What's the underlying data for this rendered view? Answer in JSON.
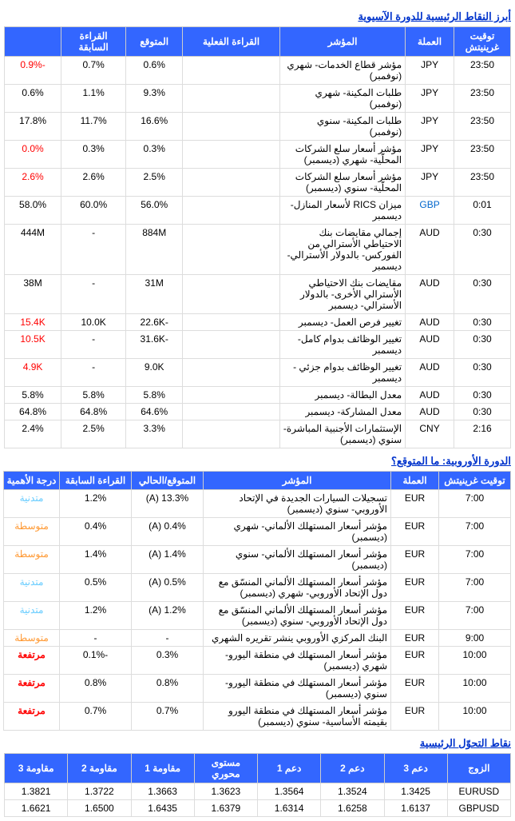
{
  "sections": {
    "asia_title": "أبرز النقاط الرئيسية للدورة الآسيوية",
    "europe_title": "الدورة الأوروبية: ما المتوقع؟",
    "pivot_title": "نقاط التحوّل الرئيسية"
  },
  "asia": {
    "headers": [
      "توقيت غرينيتش",
      "العملة",
      "المؤشر",
      "القراءة الفعلية",
      "المتوقع",
      "القراءة السابقة",
      ""
    ],
    "rows": [
      {
        "time": "23:50",
        "cur": "JPY",
        "ind": "مؤشر قطاع الخدمات- شهري (نوفمبر)",
        "act": "",
        "exp": "0.6%",
        "prev": "0.7%",
        "last": "-0.9%",
        "lc": "neg"
      },
      {
        "time": "23:50",
        "cur": "JPY",
        "ind": "طلبات المكينة- شهري (نوفمبر)",
        "act": "",
        "exp": "9.3%",
        "prev": "1.1%",
        "last": "0.6%"
      },
      {
        "time": "23:50",
        "cur": "JPY",
        "ind": "طلبات المكينة- سنوي (نوفمبر)",
        "act": "",
        "exp": "16.6%",
        "prev": "11.7%",
        "last": "17.8%"
      },
      {
        "time": "23:50",
        "cur": "JPY",
        "ind": "مؤشر أسعار سلع الشركات المحلّية- شهري (ديسمبر)",
        "act": "",
        "exp": "0.3%",
        "prev": "0.3%",
        "last": "0.0%",
        "lc": "neg"
      },
      {
        "time": "23:50",
        "cur": "JPY",
        "ind": "مؤشر أسعار سلع الشركات المحلّية- سنوي (ديسمبر)",
        "act": "",
        "exp": "2.5%",
        "prev": "2.6%",
        "last": "2.6%",
        "lc": "neg"
      },
      {
        "time": "0:01",
        "cur": "GBP",
        "cc": "blue",
        "ind": "ميزان RICS لأسعار المنازل- ديسمبر",
        "act": "",
        "exp": "56.0%",
        "prev": "60.0%",
        "last": "58.0%"
      },
      {
        "time": "0:30",
        "cur": "AUD",
        "ind": "إجمالي مقايضات بنك الاحتياطي الأسترالي من الفوركس- بالدولار الأسترالي- ديسمبر",
        "act": "",
        "exp": "884M",
        "prev": "-",
        "last": "444M"
      },
      {
        "time": "0:30",
        "cur": "AUD",
        "ind": "مقايضات بنك الاحتياطي الأسترالي الأخرى- بالدولار الأسترالي- ديسمبر",
        "act": "",
        "exp": "31M",
        "prev": "-",
        "last": "38M"
      },
      {
        "time": "0:30",
        "cur": "AUD",
        "ind": "تغيير فرص العمل- ديسمبر",
        "act": "",
        "exp": "-22.6K",
        "prev": "10.0K",
        "last": "15.4K",
        "lc": "neg"
      },
      {
        "time": "0:30",
        "cur": "AUD",
        "ind": "تغيير الوظائف بدوام كامل- ديسمبر",
        "act": "",
        "exp": "-31.6K",
        "prev": "-",
        "last": "10.5K",
        "lc": "neg"
      },
      {
        "time": "0:30",
        "cur": "AUD",
        "ind": "تغيير الوظائف بدوام جزئي - ديسمبر",
        "act": "",
        "exp": "9.0K",
        "prev": "-",
        "last": "4.9K",
        "lc": "neg"
      },
      {
        "time": "0:30",
        "cur": "AUD",
        "ind": "معدل البطالة- ديسمبر",
        "act": "",
        "exp": "5.8%",
        "prev": "5.8%",
        "last": "5.8%"
      },
      {
        "time": "0:30",
        "cur": "AUD",
        "ind": "معدل المشاركة- ديسمبر",
        "act": "",
        "exp": "64.6%",
        "prev": "64.8%",
        "last": "64.8%"
      },
      {
        "time": "2:16",
        "cur": "CNY",
        "ind": "الإستثمارات الأجنبية المباشرة- سنوي (ديسمبر)",
        "act": "",
        "exp": "3.3%",
        "prev": "2.5%",
        "last": "2.4%"
      }
    ]
  },
  "europe": {
    "headers": [
      "توقيت غرينيتش",
      "العملة",
      "المؤشر",
      "المتوقع/الحالي",
      "القراءة السابقة",
      "درجة الأهمية"
    ],
    "rows": [
      {
        "time": "7:00",
        "cur": "EUR",
        "ind": "تسجيلات السيارات الجديدة في الإتحاد الأوروبي- سنوي (ديسمبر)",
        "exp": "13.3% (A)",
        "prev": "1.2%",
        "imp": "متدنية",
        "ic": "low"
      },
      {
        "time": "7:00",
        "cur": "EUR",
        "ind": "مؤشر أسعار المستهلك الألماني- شهري (ديسمبر)",
        "exp": "0.4% (A)",
        "prev": "0.4%",
        "imp": "متوسطة",
        "ic": "med"
      },
      {
        "time": "7:00",
        "cur": "EUR",
        "ind": "مؤشر أسعار المستهلك الألماني- سنوي (ديسمبر)",
        "exp": "1.4% (A)",
        "prev": "1.4%",
        "imp": "متوسطة",
        "ic": "med"
      },
      {
        "time": "7:00",
        "cur": "EUR",
        "ind": "مؤشر أسعار المستهلك الألماني المنسّق مع دول الإتحاد الأوروبي- شهري (ديسمبر)",
        "exp": "0.5% (A)",
        "prev": "0.5%",
        "imp": "متدنية",
        "ic": "low"
      },
      {
        "time": "7:00",
        "cur": "EUR",
        "ind": "مؤشر أسعار المستهلك الألماني المنسّق مع دول الإتحاد الأوروبي- سنوي (ديسمبر)",
        "exp": "1.2% (A)",
        "prev": "1.2%",
        "imp": "متدنية",
        "ic": "low"
      },
      {
        "time": "9:00",
        "cur": "EUR",
        "ind": "البنك المركزي الأوروبي ينشر تقريره الشهري",
        "exp": "-",
        "prev": "-",
        "imp": "متوسطة",
        "ic": "med"
      },
      {
        "time": "10:00",
        "cur": "EUR",
        "ind": "مؤشر أسعار المستهلك في منطقة اليورو- شهري (ديسمبر)",
        "exp": "0.3%",
        "prev": "-0.1%",
        "imp": "مرتفعة",
        "ic": "high"
      },
      {
        "time": "10:00",
        "cur": "EUR",
        "ind": "مؤشر أسعار المستهلك في منطقة اليورو- سنوي (ديسمبر)",
        "exp": "0.8%",
        "prev": "0.8%",
        "imp": "مرتفعة",
        "ic": "high"
      },
      {
        "time": "10:00",
        "cur": "EUR",
        "ind": "مؤشر أسعار المستهلك في منطقة اليورو بقيمته الأساسية- سنوي (ديسمبر)",
        "exp": "0.7%",
        "prev": "0.7%",
        "imp": "مرتفعة",
        "ic": "high"
      }
    ]
  },
  "pivot": {
    "headers": [
      "الزوج",
      "دعم 3",
      "دعم 2",
      "دعم 1",
      "مستوى محوري",
      "مقاومة 1",
      "مقاومة 2",
      "مقاومة 3"
    ],
    "rows": [
      {
        "pair": "EURUSD",
        "s3": "1.3425",
        "s2": "1.3524",
        "s1": "1.3564",
        "pp": "1.3623",
        "r1": "1.3663",
        "r2": "1.3722",
        "r3": "1.3821"
      },
      {
        "pair": "GBPUSD",
        "s3": "1.6137",
        "s2": "1.6258",
        "s1": "1.6314",
        "pp": "1.6379",
        "r1": "1.6435",
        "r2": "1.6500",
        "r3": "1.6621"
      }
    ]
  }
}
